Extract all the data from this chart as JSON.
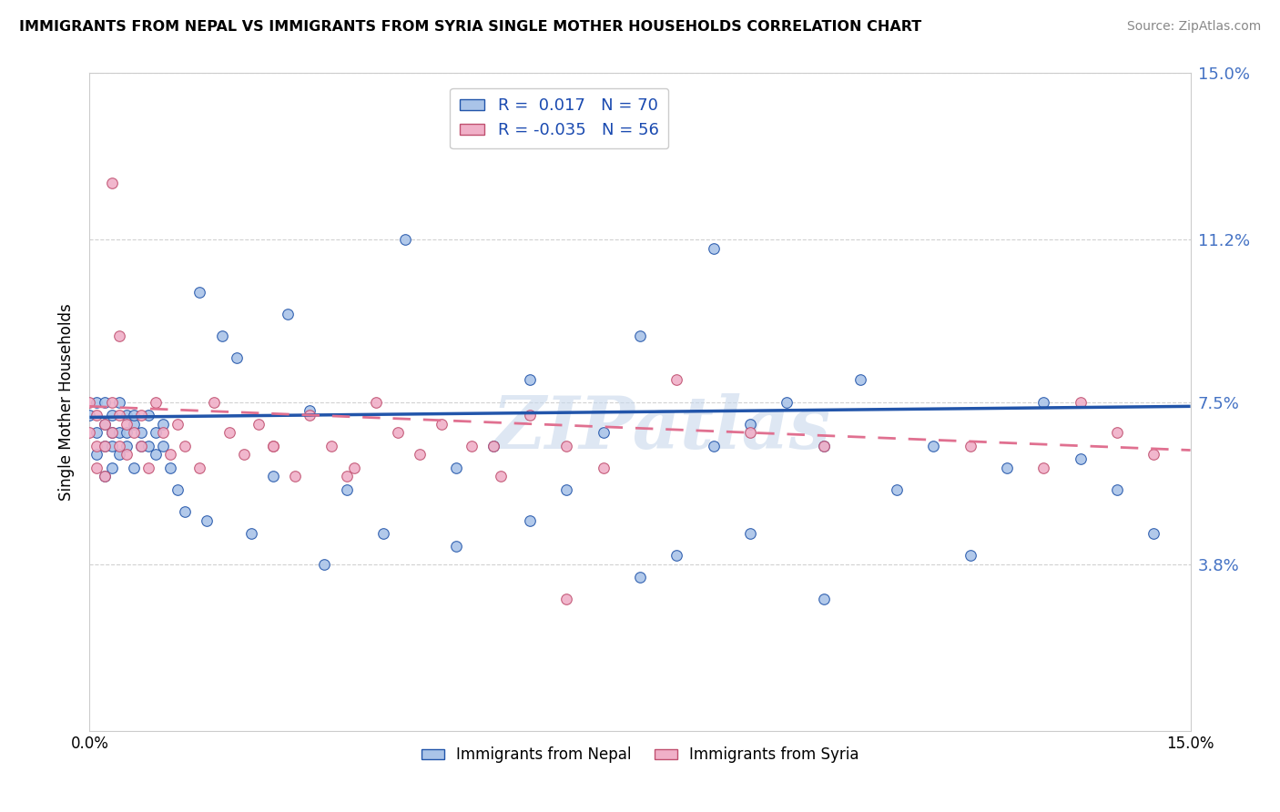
{
  "title": "IMMIGRANTS FROM NEPAL VS IMMIGRANTS FROM SYRIA SINGLE MOTHER HOUSEHOLDS CORRELATION CHART",
  "source": "Source: ZipAtlas.com",
  "ylabel": "Single Mother Households",
  "xlim": [
    0.0,
    0.15
  ],
  "ylim": [
    0.0,
    0.15
  ],
  "ytick_labels": [
    "3.8%",
    "7.5%",
    "11.2%",
    "15.0%"
  ],
  "ytick_values": [
    0.038,
    0.075,
    0.112,
    0.15
  ],
  "R_nepal": 0.017,
  "N_nepal": 70,
  "R_syria": -0.035,
  "N_syria": 56,
  "color_nepal": "#aac4e8",
  "color_syria": "#f0b0c8",
  "line_color_nepal": "#2255aa",
  "line_color_syria": "#e07090",
  "nepal_x": [
    0.0,
    0.001,
    0.001,
    0.001,
    0.002,
    0.002,
    0.002,
    0.002,
    0.003,
    0.003,
    0.003,
    0.003,
    0.004,
    0.004,
    0.004,
    0.005,
    0.005,
    0.005,
    0.006,
    0.006,
    0.006,
    0.007,
    0.007,
    0.008,
    0.008,
    0.009,
    0.009,
    0.01,
    0.01,
    0.011,
    0.012,
    0.013,
    0.015,
    0.016,
    0.018,
    0.02,
    0.022,
    0.025,
    0.027,
    0.03,
    0.032,
    0.035,
    0.04,
    0.043,
    0.05,
    0.055,
    0.06,
    0.065,
    0.07,
    0.075,
    0.08,
    0.085,
    0.09,
    0.095,
    0.1,
    0.105,
    0.11,
    0.115,
    0.12,
    0.125,
    0.13,
    0.135,
    0.14,
    0.145,
    0.09,
    0.1,
    0.085,
    0.075,
    0.06,
    0.05
  ],
  "nepal_y": [
    0.072,
    0.068,
    0.075,
    0.063,
    0.07,
    0.075,
    0.065,
    0.058,
    0.072,
    0.068,
    0.065,
    0.06,
    0.075,
    0.068,
    0.063,
    0.072,
    0.068,
    0.065,
    0.07,
    0.06,
    0.072,
    0.065,
    0.068,
    0.072,
    0.065,
    0.068,
    0.063,
    0.07,
    0.065,
    0.06,
    0.055,
    0.05,
    0.1,
    0.048,
    0.09,
    0.085,
    0.045,
    0.058,
    0.095,
    0.073,
    0.038,
    0.055,
    0.045,
    0.112,
    0.042,
    0.065,
    0.048,
    0.055,
    0.068,
    0.035,
    0.04,
    0.065,
    0.045,
    0.075,
    0.03,
    0.08,
    0.055,
    0.065,
    0.04,
    0.06,
    0.075,
    0.062,
    0.055,
    0.045,
    0.07,
    0.065,
    0.11,
    0.09,
    0.08,
    0.06
  ],
  "syria_x": [
    0.0,
    0.0,
    0.001,
    0.001,
    0.001,
    0.002,
    0.002,
    0.002,
    0.003,
    0.003,
    0.004,
    0.004,
    0.005,
    0.005,
    0.006,
    0.007,
    0.007,
    0.008,
    0.009,
    0.01,
    0.011,
    0.012,
    0.013,
    0.015,
    0.017,
    0.019,
    0.021,
    0.023,
    0.025,
    0.028,
    0.03,
    0.033,
    0.036,
    0.039,
    0.042,
    0.045,
    0.048,
    0.052,
    0.056,
    0.06,
    0.065,
    0.07,
    0.08,
    0.09,
    0.1,
    0.12,
    0.13,
    0.135,
    0.14,
    0.145,
    0.025,
    0.035,
    0.055,
    0.065,
    0.003,
    0.004
  ],
  "syria_y": [
    0.075,
    0.068,
    0.072,
    0.065,
    0.06,
    0.07,
    0.065,
    0.058,
    0.075,
    0.068,
    0.072,
    0.065,
    0.07,
    0.063,
    0.068,
    0.072,
    0.065,
    0.06,
    0.075,
    0.068,
    0.063,
    0.07,
    0.065,
    0.06,
    0.075,
    0.068,
    0.063,
    0.07,
    0.065,
    0.058,
    0.072,
    0.065,
    0.06,
    0.075,
    0.068,
    0.063,
    0.07,
    0.065,
    0.058,
    0.072,
    0.065,
    0.06,
    0.08,
    0.068,
    0.065,
    0.065,
    0.06,
    0.075,
    0.068,
    0.063,
    0.065,
    0.058,
    0.065,
    0.03,
    0.125,
    0.09
  ],
  "background_color": "#ffffff",
  "grid_color": "#cccccc",
  "nepal_trend_x0": 0.0,
  "nepal_trend_y0": 0.0715,
  "nepal_trend_x1": 0.15,
  "nepal_trend_y1": 0.074,
  "syria_trend_x0": 0.0,
  "syria_trend_y0": 0.074,
  "syria_trend_x1": 0.15,
  "syria_trend_y1": 0.064
}
